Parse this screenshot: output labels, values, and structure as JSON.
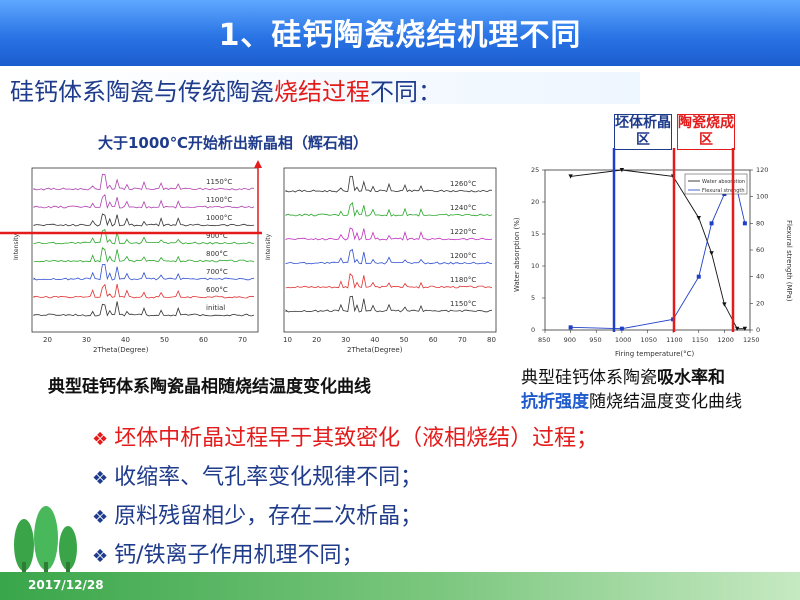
{
  "slide": {
    "title": "1、硅钙陶瓷烧结机理不同",
    "subtitle_part1": "硅钙体系陶瓷与传统陶瓷",
    "subtitle_red": "烧结过程",
    "subtitle_part2": "不同：",
    "date": "2017/12/28",
    "colors": {
      "title_bg": "#2a74e5",
      "accent_red": "#e31b1b",
      "text_blue": "#1f3b8b",
      "band_green": "#39a64a"
    }
  },
  "xrd": {
    "note": "大于1000℃开始析出新晶相（辉石相）",
    "left": {
      "xlabel": "2Theta(Degree)",
      "ylabel": "Intensity",
      "xticks": [
        "20",
        "30",
        "40",
        "50",
        "60",
        "70"
      ],
      "curves": [
        "1150°C",
        "1100°C",
        "1000°C",
        "900°C",
        "800°C",
        "700°C",
        "600°C",
        "initial"
      ]
    },
    "right": {
      "xlabel": "2Theta(Degree)",
      "ylabel": "Intensity",
      "xticks": [
        "10",
        "20",
        "30",
        "40",
        "50",
        "60",
        "70",
        "80"
      ],
      "curves": [
        "1260°C",
        "1240°C",
        "1220°C",
        "1200°C",
        "1180°C",
        "1150°C"
      ]
    },
    "caption": "典型硅钙体系陶瓷晶相随烧结温度变化曲线"
  },
  "zones": {
    "green_body": "坯体析晶区",
    "ceramic": "陶瓷烧成区"
  },
  "chart_data": {
    "type": "line",
    "xlabel": "Firing temperature(°C)",
    "ylabel": "Water absorption (%)",
    "ylabel_right": "Flexural strength (MPa)",
    "xlim": [
      850,
      1250
    ],
    "ylim": [
      0,
      25
    ],
    "ylim_right": [
      0,
      120
    ],
    "xticks": [
      "850",
      "900",
      "950",
      "1000",
      "1050",
      "1100",
      "1150",
      "1200",
      "1250"
    ],
    "yticks": [
      "0",
      "5",
      "10",
      "15",
      "20",
      "25"
    ],
    "yticks_right": [
      "0",
      "20",
      "40",
      "60",
      "80",
      "100",
      "120"
    ],
    "legend": [
      "Water absorption",
      "Flexural strength"
    ],
    "series": [
      {
        "name": "Water absorption",
        "axis": "left",
        "color": "#111111",
        "x": [
          900,
          1000,
          1100,
          1150,
          1175,
          1200,
          1225,
          1240
        ],
        "y": [
          24.0,
          25.0,
          24.0,
          17.5,
          12.0,
          4.0,
          0.2,
          0.2
        ]
      },
      {
        "name": "Flexural strength",
        "axis": "right",
        "color": "#1f3fc8",
        "x": [
          900,
          1000,
          1100,
          1150,
          1175,
          1200,
          1225,
          1240
        ],
        "y": [
          2,
          1,
          8,
          40,
          80,
          102,
          105,
          80
        ]
      }
    ],
    "caption_part1": "典型硅钙体系陶瓷",
    "caption_bold": "吸水率和",
    "caption_blue": "抗折强度",
    "caption_part2": "随烧结温度变化曲线"
  },
  "bullets": [
    {
      "text": "坯体中析晶过程早于其致密化（液相烧结）过程；",
      "style": "red"
    },
    {
      "text": "收缩率、气孔率变化规律不同；",
      "style": "dark"
    },
    {
      "text": "原料残留相少，存在二次析晶；",
      "style": "dark"
    },
    {
      "text": "钙/铁离子作用机理不同；",
      "style": "dark"
    }
  ]
}
